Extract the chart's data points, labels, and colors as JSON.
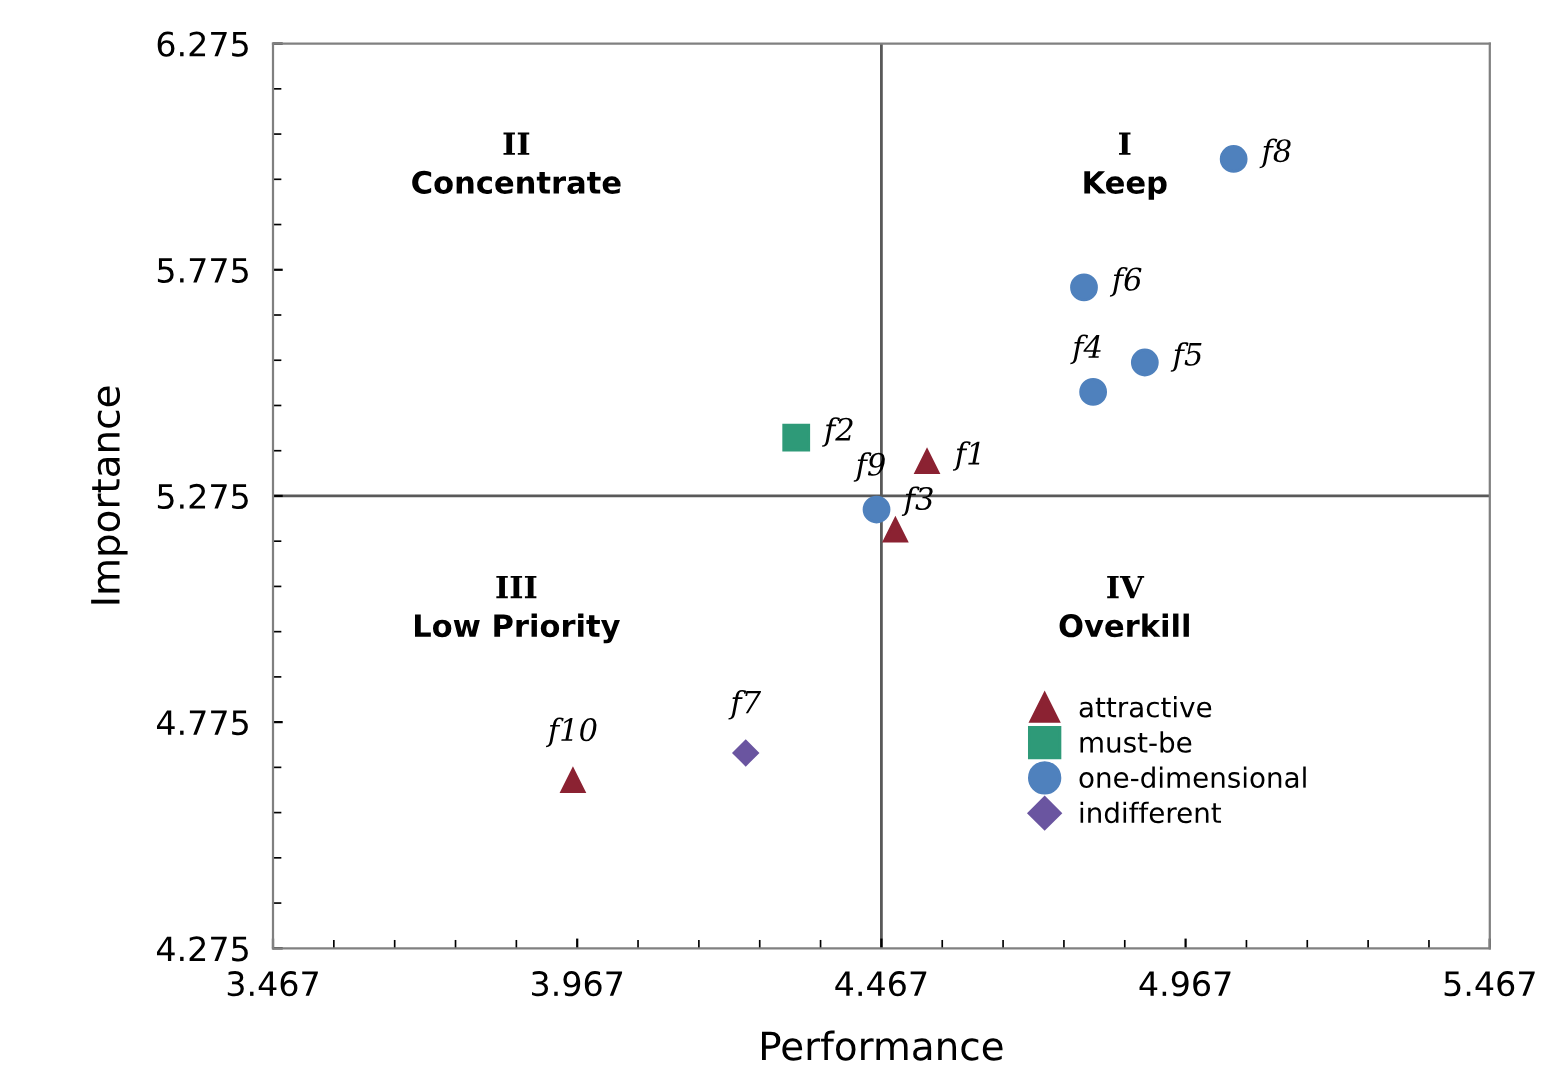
{
  "chart_data": {
    "type": "scatter",
    "xlabel": "Performance",
    "ylabel": "Importance",
    "xlim": [
      3.467,
      5.467
    ],
    "ylim": [
      4.275,
      6.275
    ],
    "xticks": [
      3.467,
      3.967,
      4.467,
      4.967,
      5.467
    ],
    "yticks": [
      4.275,
      4.775,
      5.275,
      5.775,
      6.275
    ],
    "grid": false,
    "legend": "bottom right",
    "series": [
      {
        "name": "attractive",
        "color": "#8b2232",
        "marker": "triangle",
        "x": [
          4.542,
          4.49,
          3.96
        ],
        "values": [
          5.351,
          5.2,
          4.646
        ]
      },
      {
        "name": "must-be",
        "color": "#2e9a78",
        "marker": "square",
        "x": [
          4.327
        ],
        "values": [
          5.404
        ]
      },
      {
        "name": "one-dimensional",
        "color": "#4f81bd",
        "marker": "circle",
        "x": [
          4.815,
          4.9,
          4.8,
          5.046,
          4.459
        ],
        "values": [
          5.505,
          5.57,
          5.736,
          6.02,
          5.245
        ]
      },
      {
        "name": "indifferent",
        "color": "#6a55a0",
        "marker": "diamond",
        "x": [
          4.244
        ],
        "values": [
          4.707
        ]
      }
    ],
    "ref_lines": [
      {
        "axis": "x",
        "value": 4.467,
        "color": "#595959"
      },
      {
        "axis": "y",
        "value": 5.275,
        "color": "#595959"
      }
    ],
    "annotations": [
      "I\nKeep",
      "II\nConcentrate",
      "III\nLow Priority",
      "IV\nOverkill",
      {
        "text": "f1",
        "x": 4.542,
        "y": 5.351
      },
      {
        "text": "f2",
        "x": 4.327,
        "y": 5.404
      },
      {
        "text": "f3",
        "x": 4.49,
        "y": 5.2
      },
      {
        "text": "f4",
        "x": 4.815,
        "y": 5.505
      },
      {
        "text": "f5",
        "x": 4.9,
        "y": 5.57
      },
      {
        "text": "f6",
        "x": 4.8,
        "y": 5.736
      },
      {
        "text": "f7",
        "x": 4.244,
        "y": 4.707
      },
      {
        "text": "f8",
        "x": 5.046,
        "y": 6.02
      },
      {
        "text": "f9",
        "x": 4.459,
        "y": 5.245
      },
      {
        "text": "f10",
        "x": 3.96,
        "y": 4.646
      }
    ]
  }
}
